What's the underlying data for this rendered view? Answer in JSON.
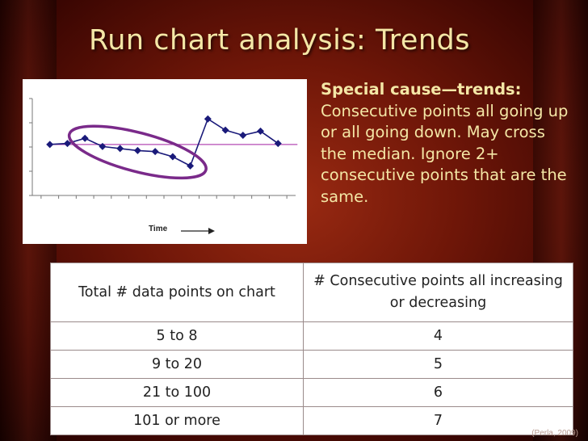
{
  "slide": {
    "title": "Run chart analysis:  Trends",
    "credit": "(Perla, 2009)"
  },
  "side_text": {
    "heading": "Special cause—trends:",
    "body": "Consecutive points all going up or all going down.  May cross the median.  Ignore 2+ consecutive points that are the same."
  },
  "chart": {
    "x_label": "Time",
    "line_color": "#1a1a7a",
    "median_color": "#b44ab4",
    "ellipse_color": "#7a2a8a",
    "axis": "y axis has 5 tick marks, no numeric labels; x axis has 15 tick marks, no labels",
    "annotation": "ellipse encloses the trend of decreasing points 3 through 9"
  },
  "chart_data": {
    "type": "line",
    "x": [
      1,
      2,
      3,
      4,
      5,
      6,
      7,
      8,
      9,
      10,
      11,
      12,
      13,
      14
    ],
    "series": [
      {
        "values": [
          5.0,
          5.1,
          5.6,
          4.8,
          4.6,
          4.4,
          4.3,
          3.8,
          2.9,
          7.5,
          6.4,
          5.9,
          6.3,
          5.1
        ]
      }
    ],
    "median": 5.0,
    "ylim": [
      0,
      9.5
    ],
    "xlabel": "Time",
    "ylabel": "",
    "grid": false
  },
  "table": {
    "headers": [
      "Total # data points on chart",
      "# Consecutive points all increasing or decreasing"
    ],
    "rows": [
      [
        "5 to 8",
        "4"
      ],
      [
        "9 to 20",
        "5"
      ],
      [
        "21 to 100",
        "6"
      ],
      [
        "101 or more",
        "7"
      ]
    ]
  }
}
